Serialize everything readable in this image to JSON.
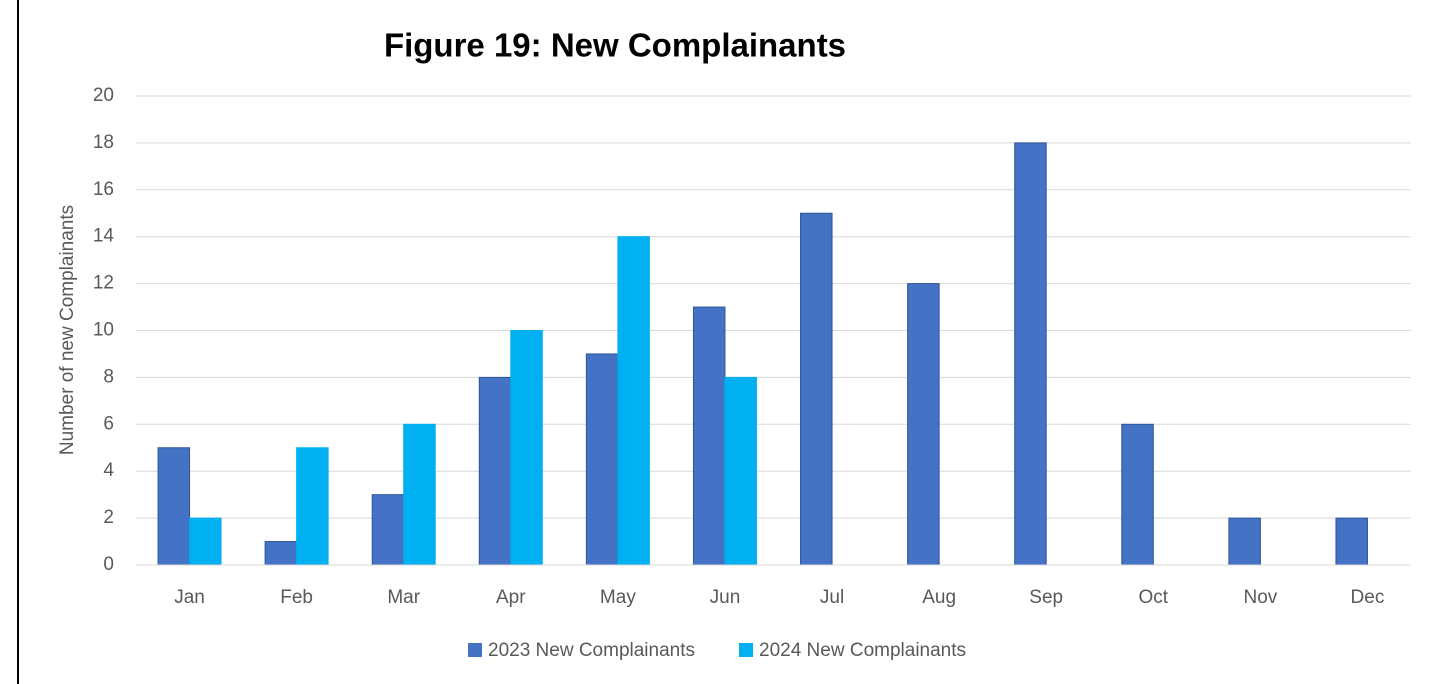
{
  "chart_data": {
    "type": "bar",
    "title": "Figure 19: New Complainants",
    "y_label": "Number of new Complainants",
    "categories": [
      "Jan",
      "Feb",
      "Mar",
      "Apr",
      "May",
      "Jun",
      "Jul",
      "Aug",
      "Sep",
      "Oct",
      "Nov",
      "Dec"
    ],
    "series": [
      {
        "name": "2023 New Complainants",
        "color": "#4472c4",
        "values": [
          5,
          1,
          3,
          8,
          9,
          11,
          15,
          12,
          18,
          6,
          2,
          2
        ]
      },
      {
        "name": "2024 New Complainants",
        "color": "#00b0f0",
        "values": [
          2,
          5,
          6,
          10,
          14,
          8,
          null,
          null,
          null,
          null,
          null,
          null
        ]
      }
    ],
    "ylim": [
      0,
      20
    ],
    "yticks": [
      0,
      2,
      4,
      6,
      8,
      10,
      12,
      14,
      16,
      18,
      20
    ],
    "grid": true,
    "legend": "bottom"
  }
}
